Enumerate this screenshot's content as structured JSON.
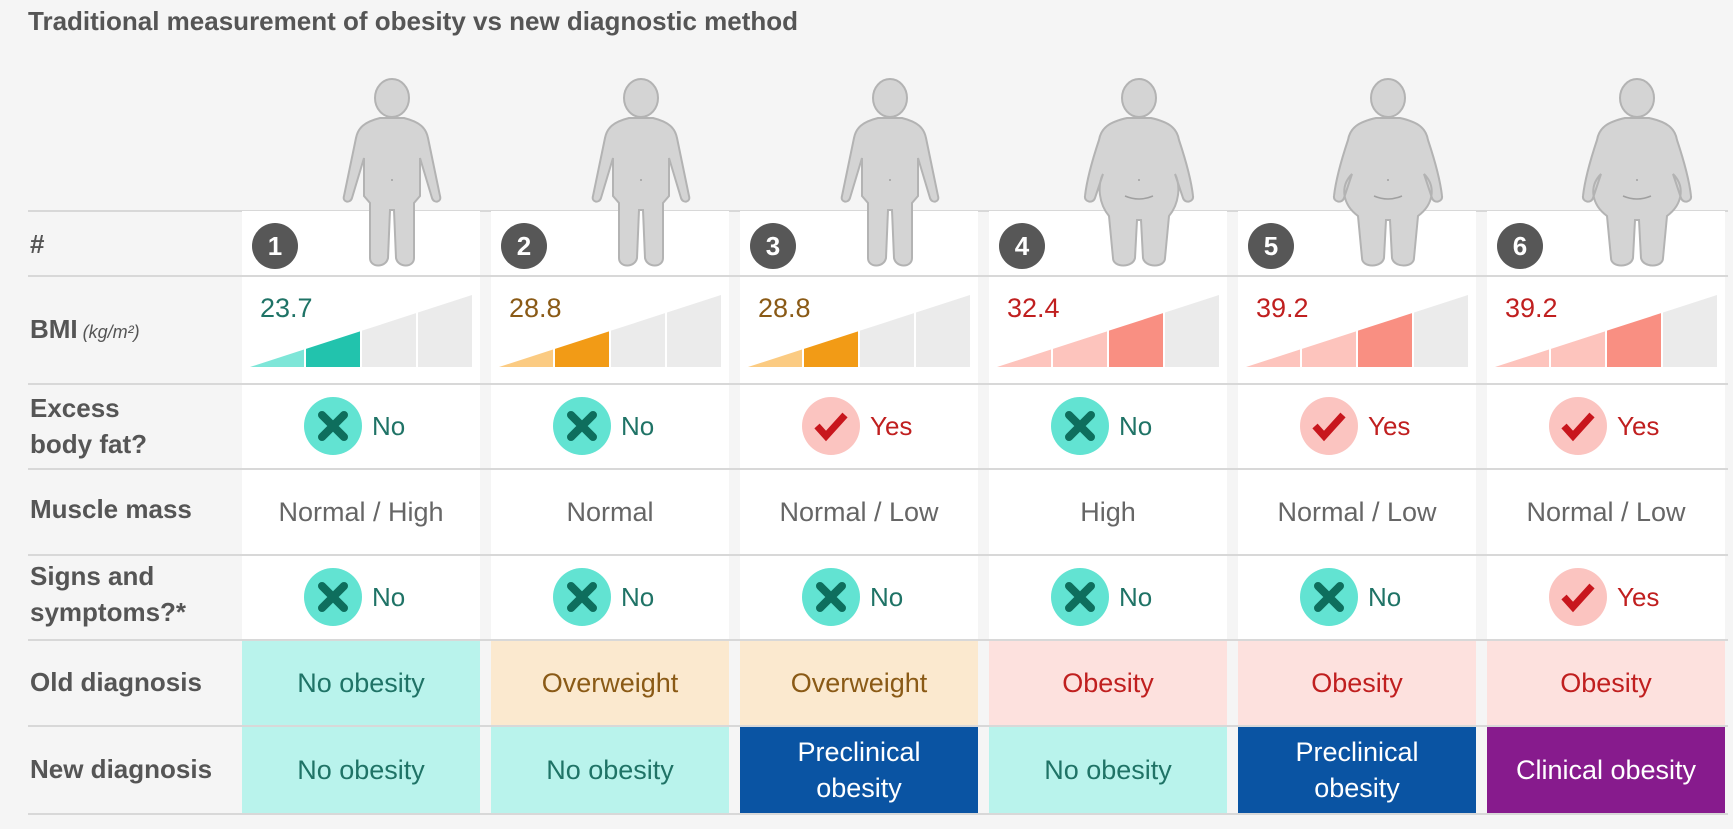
{
  "title": "Traditional measurement of obesity vs new diagnostic method",
  "row_labels": {
    "number": "#",
    "bmi": "BMI",
    "bmi_unit": "(kg/m²)",
    "excess_fat": "Excess\nbody fat?",
    "muscle": "Muscle mass",
    "signs": "Signs and\nsymptoms?*",
    "old": "Old diagnosis",
    "new": "New diagnosis"
  },
  "colors": {
    "teal": "#22c3ad",
    "teal_light": "#7ee6d8",
    "teal_text": "#1f7366",
    "orange": "#f29b16",
    "orange_light": "#fbcb82",
    "orange_text": "#8a5a16",
    "red": "#f98f82",
    "red_light": "#fdc4bd",
    "red_text": "#c01f1f",
    "grey_bar": "#ebebeb",
    "no_circle": "#62e3d2",
    "no_cross": "#0e6e5d",
    "yes_circle": "#fbc4c0",
    "yes_check": "#c8161d",
    "old_none_bg": "#b9f3ec",
    "old_over_bg": "#fbe9cf",
    "old_obese_bg": "#fde1de",
    "preclinical_bg": "#0a54a3",
    "clinical_bg": "#871b8d"
  },
  "people": [
    {
      "number": "1",
      "bmi": "23.7",
      "bmi_level": 2,
      "bmi_color": "teal",
      "excess_fat": "No",
      "muscle": "Normal / High",
      "signs": "No",
      "old": "No obesity",
      "old_style": "none",
      "new": "No obesity",
      "new_style": "none",
      "body": "slim"
    },
    {
      "number": "2",
      "bmi": "28.8",
      "bmi_level": 2,
      "bmi_color": "orange",
      "excess_fat": "No",
      "muscle": "Normal",
      "signs": "No",
      "old": "Overweight",
      "old_style": "over",
      "new": "No obesity",
      "new_style": "none",
      "body": "slim"
    },
    {
      "number": "3",
      "bmi": "28.8",
      "bmi_level": 2,
      "bmi_color": "orange",
      "excess_fat": "Yes",
      "muscle": "Normal / Low",
      "signs": "No",
      "old": "Overweight",
      "old_style": "over",
      "new": "Preclinical obesity",
      "new_style": "preclinical",
      "body": "slim"
    },
    {
      "number": "4",
      "bmi": "32.4",
      "bmi_level": 3,
      "bmi_color": "red",
      "excess_fat": "No",
      "muscle": "High",
      "signs": "No",
      "old": "Obesity",
      "old_style": "obese",
      "new": "No obesity",
      "new_style": "none",
      "body": "medium"
    },
    {
      "number": "5",
      "bmi": "39.2",
      "bmi_level": 3,
      "bmi_color": "red",
      "excess_fat": "Yes",
      "muscle": "Normal / Low",
      "signs": "No",
      "old": "Obesity",
      "old_style": "obese",
      "new": "Preclinical obesity",
      "new_style": "preclinical",
      "body": "large"
    },
    {
      "number": "6",
      "bmi": "39.2",
      "bmi_level": 3,
      "bmi_color": "red",
      "excess_fat": "Yes",
      "muscle": "Normal / Low",
      "signs": "Yes",
      "old": "Obesity",
      "old_style": "obese",
      "new": "Clinical obesity",
      "new_style": "clinical",
      "body": "large"
    }
  ]
}
